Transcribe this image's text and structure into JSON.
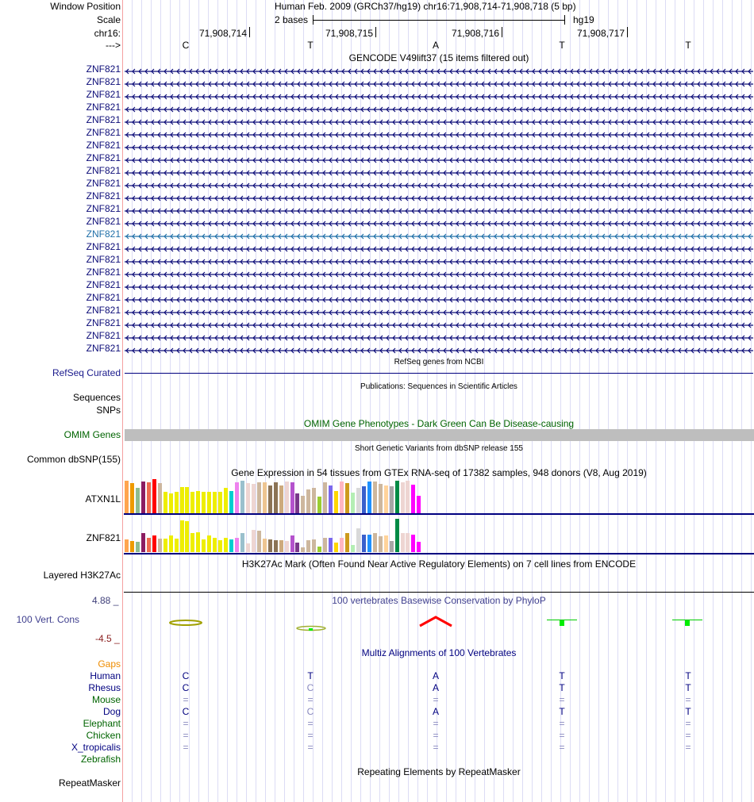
{
  "header": {
    "window_position_label": "Window Position",
    "assembly_position": "Human Feb. 2009 (GRCh37/hg19)   chr16:71,908,714-71,908,718 (5 bp)",
    "scale_label": "Scale",
    "scale_text": "2 bases",
    "scale_db": "hg19",
    "chrom_label": "chr16:",
    "strand_label": "--->",
    "coords": [
      "71,908,714",
      "71,908,715",
      "71,908,716",
      "71,908,717"
    ],
    "bases": [
      "C",
      "T",
      "A",
      "T",
      "T"
    ]
  },
  "gencode": {
    "title": "GENCODE V49lift37 (15 items filtered out)",
    "genes": [
      "ZNF821",
      "ZNF821",
      "ZNF821",
      "ZNF821",
      "ZNF821",
      "ZNF821",
      "ZNF821",
      "ZNF821",
      "ZNF821",
      "ZNF821",
      "ZNF821",
      "ZNF821",
      "ZNF821",
      "ZNF821",
      "ZNF821",
      "ZNF821",
      "ZNF821",
      "ZNF821",
      "ZNF821",
      "ZNF821",
      "ZNF821",
      "ZNF821",
      "ZNF821"
    ],
    "highlighted_index": 13,
    "colors": {
      "normal": "#0c0c78",
      "highlight": "#1f6fa8"
    }
  },
  "refseq": {
    "title": "RefSeq genes from NCBI",
    "label": "RefSeq Curated"
  },
  "publications": {
    "title": "Publications: Sequences in Scientific Articles",
    "label1": "Sequences",
    "label2": "SNPs"
  },
  "omim": {
    "title": "OMIM Gene Phenotypes - Dark Green Can Be Disease-causing",
    "label": "OMIM Genes"
  },
  "dbsnp": {
    "title": "Short Genetic Variants from dbSNP release 155",
    "label": "Common dbSNP(155)"
  },
  "gtex": {
    "title": "Gene Expression in 54 tissues from GTEx RNA-seq of 17382 samples, 948 donors (V8, Aug 2019)",
    "colors": [
      "#FFA54F",
      "#EE9A00",
      "#8FBC8F",
      "#8B1C62",
      "#EE6A50",
      "#FF0000",
      "#CDB79E",
      "#EEEE00",
      "#EEEE00",
      "#EEEE00",
      "#EEEE00",
      "#EEEE00",
      "#EEEE00",
      "#EEEE00",
      "#EEEE00",
      "#EEEE00",
      "#EEEE00",
      "#EEEE00",
      "#EEEE00",
      "#00CED1",
      "#EE82EE",
      "#9AC0CD",
      "#EED5D2",
      "#EED5D2",
      "#CDB79E",
      "#EEC591",
      "#8B7355",
      "#8B7355",
      "#CDAA7D",
      "#EED5D2",
      "#B452CD",
      "#7A378B",
      "#CDB79E",
      "#CDB79E",
      "#CDB79E",
      "#9ACD32",
      "#CDB79E",
      "#7B68EE",
      "#FFD700",
      "#FFB6C1",
      "#CD9B1D",
      "#B4EEB4",
      "#D9D9D9",
      "#3A5FCD",
      "#1E90FF",
      "#CDB79E",
      "#CDB79E",
      "#FFD39B",
      "#A6A6A6",
      "#008B45",
      "#EED5D2",
      "#EED5D2",
      "#FF00FF",
      "#FF00FF"
    ],
    "genes": [
      {
        "name": "ATXN1L",
        "values_pct": [
          98,
          90,
          76,
          95,
          93,
          102,
          90,
          64,
          60,
          64,
          78,
          78,
          64,
          66,
          64,
          64,
          64,
          64,
          76,
          66,
          93,
          98,
          90,
          88,
          93,
          93,
          83,
          93,
          83,
          95,
          93,
          59,
          52,
          71,
          76,
          50,
          93,
          83,
          66,
          95,
          90,
          62,
          76,
          81,
          95,
          95,
          88,
          83,
          81,
          98,
          93,
          98,
          86,
          52
        ]
      },
      {
        "name": "ZNF821",
        "values_pct": [
          38,
          33,
          31,
          56,
          42,
          49,
          40,
          40,
          49,
          40,
          96,
          92,
          58,
          60,
          38,
          49,
          44,
          35,
          44,
          38,
          42,
          58,
          26,
          67,
          65,
          40,
          38,
          35,
          35,
          33,
          49,
          29,
          15,
          35,
          38,
          17,
          44,
          44,
          29,
          44,
          58,
          22,
          71,
          53,
          53,
          56,
          47,
          49,
          33,
          100,
          56,
          58,
          53,
          31
        ]
      }
    ]
  },
  "h3k27ac": {
    "title": "H3K27Ac Mark (Often Found Near Active Regulatory Elements) on 7 cell lines from ENCODE",
    "label": "Layered H3K27Ac"
  },
  "phylop": {
    "title": "100 vertebrates Basewise Conservation by PhyloP",
    "label": "100 Vert. Cons",
    "ymax": "4.88 _",
    "ymin": "-4.5 _",
    "glyph_colors": [
      "#a0a000",
      "#90c040",
      "#ff0000",
      "#00ee00",
      "#00ee00"
    ]
  },
  "multiz": {
    "title": "Multiz Alignments of 100 Vertebrates",
    "gaps_label": "Gaps",
    "species": [
      {
        "name": "Human",
        "color": "#000080",
        "bases": [
          "C",
          "T",
          "A",
          "T",
          "T"
        ],
        "faded": [
          false,
          false,
          false,
          false,
          false
        ]
      },
      {
        "name": "Rhesus",
        "color": "#000080",
        "bases": [
          "C",
          "C",
          "A",
          "T",
          "T"
        ],
        "faded": [
          false,
          true,
          false,
          false,
          false
        ]
      },
      {
        "name": "Mouse",
        "color": "#006400",
        "bases": [
          "=",
          "=",
          "=",
          "=",
          "="
        ],
        "faded": [
          true,
          true,
          true,
          true,
          true
        ]
      },
      {
        "name": "Dog",
        "color": "#000080",
        "bases": [
          "C",
          "C",
          "A",
          "T",
          "T"
        ],
        "faded": [
          false,
          true,
          false,
          false,
          false
        ]
      },
      {
        "name": "Elephant",
        "color": "#006400",
        "bases": [
          "=",
          "=",
          "=",
          "=",
          "="
        ],
        "faded": [
          true,
          true,
          true,
          true,
          true
        ]
      },
      {
        "name": "Chicken",
        "color": "#006400",
        "bases": [
          "=",
          "=",
          "=",
          "=",
          "="
        ],
        "faded": [
          true,
          true,
          true,
          true,
          true
        ]
      },
      {
        "name": "X_tropicalis",
        "color": "#000080",
        "bases": [
          "=",
          "=",
          "=",
          "=",
          "="
        ],
        "faded": [
          true,
          true,
          true,
          true,
          true
        ]
      },
      {
        "name": "Zebrafish",
        "color": "#006400",
        "bases": [
          "",
          "",
          "",
          "",
          ""
        ],
        "faded": [
          false,
          false,
          false,
          false,
          false
        ]
      }
    ]
  },
  "repeatmasker": {
    "title": "Repeating Elements by RepeatMasker",
    "label": "RepeatMasker"
  }
}
